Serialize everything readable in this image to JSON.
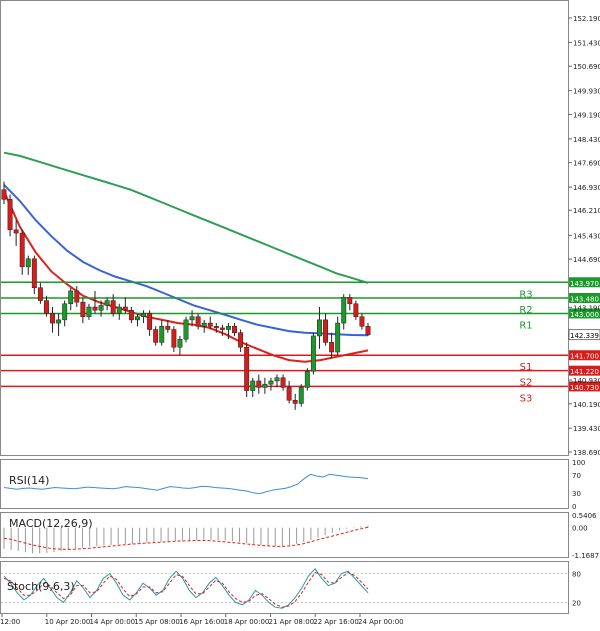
{
  "chart_data": {
    "type": "candlestick",
    "main_panel": {
      "price_axis_ticks": [
        "152.190",
        "151.430",
        "150.690",
        "149.930",
        "149.190",
        "148.430",
        "147.690",
        "146.930",
        "146.210",
        "145.430",
        "144.690",
        "143.190",
        "142.339",
        "140.930",
        "140.190",
        "139.430",
        "138.690"
      ],
      "ylim": [
        138.69,
        152.19
      ],
      "candles": [
        {
          "o": 146.85,
          "h": 147.1,
          "l": 146.4,
          "c": 146.55
        },
        {
          "o": 146.55,
          "h": 146.7,
          "l": 145.4,
          "c": 145.6
        },
        {
          "o": 145.6,
          "h": 145.9,
          "l": 145.1,
          "c": 145.5
        },
        {
          "o": 145.5,
          "h": 145.6,
          "l": 144.2,
          "c": 144.45
        },
        {
          "o": 144.45,
          "h": 144.8,
          "l": 144.2,
          "c": 144.7
        },
        {
          "o": 144.7,
          "h": 144.8,
          "l": 143.6,
          "c": 143.8
        },
        {
          "o": 143.8,
          "h": 143.95,
          "l": 143.3,
          "c": 143.4
        },
        {
          "o": 143.4,
          "h": 143.55,
          "l": 142.9,
          "c": 143.0
        },
        {
          "o": 143.0,
          "h": 143.2,
          "l": 142.4,
          "c": 142.7
        },
        {
          "o": 142.7,
          "h": 143.0,
          "l": 142.3,
          "c": 142.8
        },
        {
          "o": 142.8,
          "h": 143.4,
          "l": 142.6,
          "c": 143.3
        },
        {
          "o": 143.3,
          "h": 143.8,
          "l": 143.1,
          "c": 143.7
        },
        {
          "o": 143.7,
          "h": 143.85,
          "l": 143.2,
          "c": 143.35
        },
        {
          "o": 143.35,
          "h": 143.5,
          "l": 142.7,
          "c": 142.9
        },
        {
          "o": 142.9,
          "h": 143.3,
          "l": 142.8,
          "c": 143.2
        },
        {
          "o": 143.2,
          "h": 143.7,
          "l": 143.0,
          "c": 143.1
        },
        {
          "o": 143.1,
          "h": 143.4,
          "l": 142.9,
          "c": 143.25
        },
        {
          "o": 143.25,
          "h": 143.5,
          "l": 143.1,
          "c": 143.4
        },
        {
          "o": 143.4,
          "h": 143.6,
          "l": 142.9,
          "c": 143.0
        },
        {
          "o": 143.0,
          "h": 143.3,
          "l": 142.8,
          "c": 143.2
        },
        {
          "o": 143.2,
          "h": 143.5,
          "l": 143.0,
          "c": 143.1
        },
        {
          "o": 143.1,
          "h": 143.2,
          "l": 142.7,
          "c": 142.8
        },
        {
          "o": 142.8,
          "h": 143.0,
          "l": 142.6,
          "c": 142.9
        },
        {
          "o": 142.9,
          "h": 143.1,
          "l": 142.7,
          "c": 143.0
        },
        {
          "o": 143.0,
          "h": 143.1,
          "l": 142.3,
          "c": 142.5
        },
        {
          "o": 142.5,
          "h": 142.6,
          "l": 142.0,
          "c": 142.1
        },
        {
          "o": 142.1,
          "h": 142.8,
          "l": 142.0,
          "c": 142.6
        },
        {
          "o": 142.6,
          "h": 142.8,
          "l": 142.4,
          "c": 142.5
        },
        {
          "o": 142.5,
          "h": 142.6,
          "l": 141.8,
          "c": 141.95
        },
        {
          "o": 141.95,
          "h": 142.3,
          "l": 141.7,
          "c": 142.2
        },
        {
          "o": 142.2,
          "h": 142.9,
          "l": 142.1,
          "c": 142.8
        },
        {
          "o": 142.8,
          "h": 143.1,
          "l": 142.6,
          "c": 142.9
        },
        {
          "o": 142.9,
          "h": 143.0,
          "l": 142.5,
          "c": 142.6
        },
        {
          "o": 142.6,
          "h": 142.8,
          "l": 142.4,
          "c": 142.7
        },
        {
          "o": 142.7,
          "h": 142.9,
          "l": 142.5,
          "c": 142.6
        },
        {
          "o": 142.6,
          "h": 142.7,
          "l": 142.4,
          "c": 142.55
        },
        {
          "o": 142.55,
          "h": 142.65,
          "l": 142.3,
          "c": 142.5
        },
        {
          "o": 142.5,
          "h": 142.7,
          "l": 142.2,
          "c": 142.6
        },
        {
          "o": 142.6,
          "h": 142.7,
          "l": 142.3,
          "c": 142.4
        },
        {
          "o": 142.4,
          "h": 142.5,
          "l": 141.8,
          "c": 141.95
        },
        {
          "o": 141.95,
          "h": 142.1,
          "l": 140.4,
          "c": 140.6
        },
        {
          "o": 140.6,
          "h": 141.0,
          "l": 140.4,
          "c": 140.9
        },
        {
          "o": 140.9,
          "h": 141.1,
          "l": 140.5,
          "c": 140.7
        },
        {
          "o": 140.7,
          "h": 141.0,
          "l": 140.5,
          "c": 140.8
        },
        {
          "o": 140.8,
          "h": 141.0,
          "l": 140.6,
          "c": 140.9
        },
        {
          "o": 140.9,
          "h": 141.1,
          "l": 140.7,
          "c": 141.0
        },
        {
          "o": 141.0,
          "h": 141.1,
          "l": 140.6,
          "c": 140.7
        },
        {
          "o": 140.7,
          "h": 140.9,
          "l": 140.2,
          "c": 140.3
        },
        {
          "o": 140.3,
          "h": 140.5,
          "l": 140.0,
          "c": 140.2
        },
        {
          "o": 140.2,
          "h": 140.8,
          "l": 140.1,
          "c": 140.7
        },
        {
          "o": 140.7,
          "h": 141.3,
          "l": 140.6,
          "c": 141.2
        },
        {
          "o": 141.2,
          "h": 142.4,
          "l": 141.1,
          "c": 142.3
        },
        {
          "o": 142.3,
          "h": 143.2,
          "l": 141.9,
          "c": 142.8
        },
        {
          "o": 142.8,
          "h": 143.0,
          "l": 142.0,
          "c": 142.1
        },
        {
          "o": 142.1,
          "h": 142.4,
          "l": 141.6,
          "c": 141.8
        },
        {
          "o": 141.8,
          "h": 142.9,
          "l": 141.7,
          "c": 142.7
        },
        {
          "o": 142.7,
          "h": 143.6,
          "l": 142.5,
          "c": 143.5
        },
        {
          "o": 143.5,
          "h": 143.6,
          "l": 143.1,
          "c": 143.3
        },
        {
          "o": 143.3,
          "h": 143.4,
          "l": 142.8,
          "c": 142.9
        },
        {
          "o": 142.9,
          "h": 143.0,
          "l": 142.5,
          "c": 142.6
        },
        {
          "o": 142.6,
          "h": 142.7,
          "l": 142.3,
          "c": 142.34
        }
      ],
      "moving_averages": [
        {
          "color": "#2e9e52",
          "values": [
            148.0,
            147.9,
            147.75,
            147.6,
            147.45,
            147.3,
            147.15,
            147.0,
            146.85,
            146.65,
            146.45,
            146.25,
            146.05,
            145.85,
            145.65,
            145.45,
            145.25,
            145.05,
            144.85,
            144.65,
            144.45,
            144.25,
            144.1,
            143.95
          ]
        },
        {
          "color": "#3a62d8",
          "values": [
            147.0,
            146.5,
            145.9,
            145.4,
            144.95,
            144.6,
            144.35,
            144.15,
            144.0,
            143.85,
            143.65,
            143.45,
            143.25,
            143.1,
            142.95,
            142.8,
            142.65,
            142.55,
            142.45,
            142.4,
            142.38,
            142.35,
            142.33,
            142.32
          ]
        },
        {
          "color": "#e0201a",
          "values": [
            146.8,
            145.7,
            144.9,
            144.3,
            143.9,
            143.55,
            143.35,
            143.2,
            143.05,
            142.9,
            142.8,
            142.7,
            142.65,
            142.55,
            142.35,
            142.1,
            141.9,
            141.7,
            141.55,
            141.5,
            141.55,
            141.65,
            141.75,
            141.85
          ]
        }
      ],
      "levels": [
        {
          "name": "R3",
          "value": 143.97,
          "label": "143.970",
          "color": "#1a9a2a"
        },
        {
          "name": "R2",
          "value": 143.48,
          "label": "143.480",
          "color": "#1a9a2a"
        },
        {
          "name": "R1",
          "value": 143.0,
          "label": "143.000",
          "color": "#1a9a2a"
        },
        {
          "name": "S1",
          "value": 141.7,
          "label": "141.700",
          "color": "#d81b1b"
        },
        {
          "name": "S2",
          "value": 141.22,
          "label": "141.220",
          "color": "#d81b1b"
        },
        {
          "name": "S3",
          "value": 140.73,
          "label": "140.730",
          "color": "#d81b1b"
        }
      ],
      "current_price": "142.339"
    },
    "rsi_panel": {
      "label": "RSI(14)",
      "ticks": [
        "100",
        "70",
        "30",
        "0"
      ],
      "ylim": [
        0,
        100
      ],
      "color": "#3a8fd8",
      "values": [
        42,
        40,
        38,
        40,
        41,
        39,
        38,
        40,
        42,
        41,
        40,
        39,
        41,
        43,
        42,
        41,
        40,
        39,
        41,
        44,
        43,
        42,
        40,
        38,
        36,
        40,
        44,
        43,
        41,
        40,
        42,
        45,
        44,
        42,
        41,
        40,
        38,
        36,
        34,
        30,
        28,
        32,
        36,
        38,
        40,
        44,
        50,
        62,
        72,
        68,
        66,
        72,
        70,
        68,
        66,
        65,
        64,
        62
      ]
    },
    "macd_panel": {
      "label": "MACD(12,26,9)",
      "ticks": [
        "0.5406",
        "0.00",
        "-1.1687"
      ],
      "ylim": [
        -1.1687,
        0.5406
      ],
      "hist_color": "#9a9a9a",
      "signal_color": "#e0201a",
      "histogram": [
        -0.9,
        -0.95,
        -1.0,
        -1.05,
        -1.1,
        -1.1,
        -1.08,
        -1.05,
        -1.0,
        -0.95,
        -0.9,
        -0.85,
        -0.8,
        -0.78,
        -0.76,
        -0.74,
        -0.72,
        -0.7,
        -0.68,
        -0.66,
        -0.64,
        -0.62,
        -0.6,
        -0.58,
        -0.56,
        -0.55,
        -0.54,
        -0.53,
        -0.52,
        -0.52,
        -0.53,
        -0.55,
        -0.58,
        -0.62,
        -0.66,
        -0.7,
        -0.74,
        -0.78,
        -0.8,
        -0.8,
        -0.76,
        -0.7,
        -0.62,
        -0.52,
        -0.42,
        -0.32,
        -0.22,
        -0.12,
        -0.04,
        0.02,
        0.06,
        0.08
      ],
      "signal": [
        -0.45,
        -0.5,
        -0.58,
        -0.66,
        -0.74,
        -0.8,
        -0.86,
        -0.9,
        -0.92,
        -0.93,
        -0.92,
        -0.9,
        -0.88,
        -0.85,
        -0.82,
        -0.79,
        -0.76,
        -0.73,
        -0.7,
        -0.68,
        -0.66,
        -0.64,
        -0.62,
        -0.6,
        -0.58,
        -0.57,
        -0.56,
        -0.55,
        -0.55,
        -0.56,
        -0.58,
        -0.61,
        -0.64,
        -0.67,
        -0.7,
        -0.73,
        -0.76,
        -0.78,
        -0.8,
        -0.8,
        -0.78,
        -0.74,
        -0.68,
        -0.6,
        -0.52,
        -0.44,
        -0.36,
        -0.28,
        -0.2,
        -0.12,
        -0.05,
        0.02
      ]
    },
    "stoch_panel": {
      "label": "Stoch(9,6,3)",
      "ticks": [
        "80",
        "20"
      ],
      "ylim": [
        0,
        100
      ],
      "main_color": "#2a9aa8",
      "signal_color": "#e0201a",
      "main": [
        75,
        60,
        40,
        25,
        35,
        55,
        70,
        50,
        30,
        20,
        40,
        65,
        50,
        30,
        45,
        70,
        80,
        60,
        35,
        25,
        40,
        60,
        50,
        35,
        45,
        70,
        85,
        70,
        45,
        30,
        40,
        60,
        72,
        55,
        35,
        20,
        15,
        25,
        45,
        35,
        20,
        10,
        8,
        15,
        30,
        50,
        75,
        90,
        70,
        55,
        60,
        80,
        85,
        70,
        55,
        40
      ],
      "signal": [
        70,
        65,
        50,
        35,
        35,
        45,
        60,
        55,
        40,
        28,
        35,
        55,
        55,
        40,
        42,
        60,
        75,
        68,
        48,
        32,
        38,
        52,
        52,
        40,
        42,
        60,
        78,
        74,
        55,
        38,
        38,
        52,
        66,
        60,
        42,
        28,
        20,
        22,
        35,
        38,
        28,
        16,
        10,
        12,
        22,
        40,
        62,
        82,
        78,
        62,
        60,
        72,
        82,
        76,
        62,
        48
      ]
    },
    "time_axis": [
      "12:00",
      "10 Apr 20:00",
      "14 Apr 00:00",
      "15 Apr 08:00",
      "16 Apr 16:00",
      "18 Apr 00:00",
      "21 Apr 08:00",
      "22 Apr 16:00",
      "24 Apr 00:00"
    ]
  }
}
